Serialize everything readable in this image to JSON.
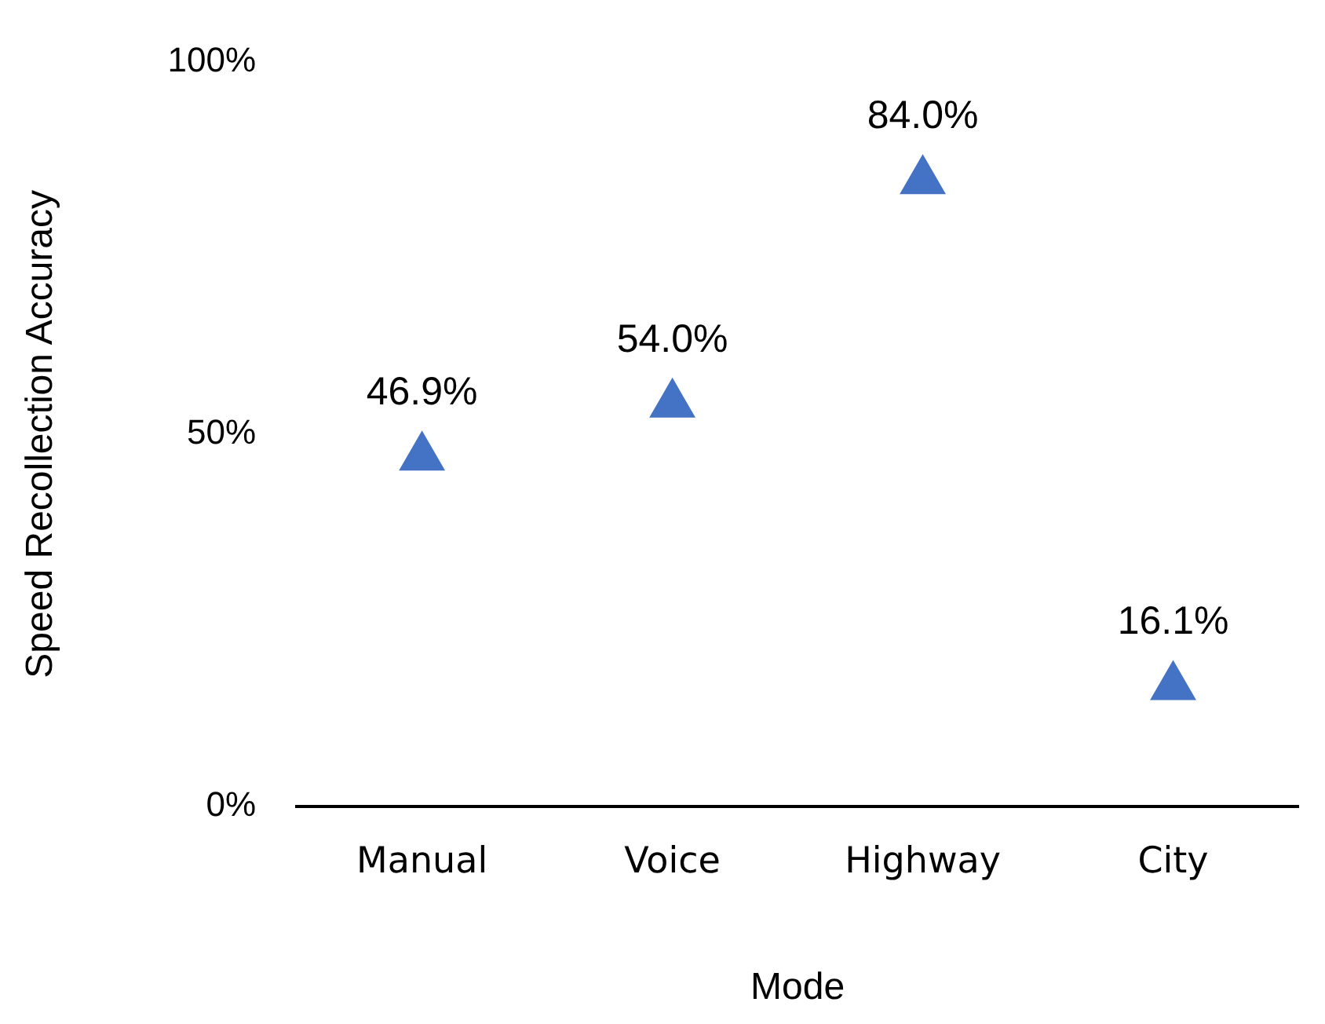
{
  "chart_data": {
    "type": "scatter",
    "xlabel": "Mode",
    "ylabel": "Speed Recollection Accuracy",
    "categories": [
      "Manual",
      "Voice",
      "Highway",
      "City"
    ],
    "values": [
      46.9,
      54.0,
      84.0,
      16.1
    ],
    "value_labels": [
      "46.9%",
      "54.0%",
      "84.0%",
      "16.1%"
    ],
    "color": "#4472c4",
    "marker": "triangle",
    "ylim": [
      0,
      100
    ],
    "yticks": [
      {
        "value": 0,
        "label": "0%"
      },
      {
        "value": 50,
        "label": "50%"
      },
      {
        "value": 100,
        "label": "100%"
      }
    ],
    "grid": false,
    "legend": false
  }
}
